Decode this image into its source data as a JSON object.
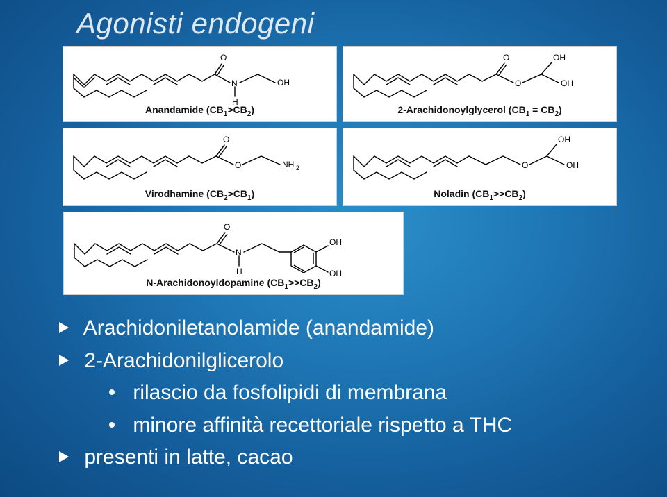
{
  "title": "Agonisti endogeni",
  "molecules": {
    "anandamide": {
      "name": "Anandamide",
      "affinity_html": "(CB<span class='sub'>1</span>>CB<span class='sub'>2</span>)"
    },
    "ag2": {
      "name": "2-Arachidonoylglycerol",
      "affinity_html": "(CB<span class='sub'>1</span> = CB<span class='sub'>2</span>)"
    },
    "virodhamine": {
      "name": "Virodhamine",
      "affinity_html": "(CB<span class='sub'>2</span>>CB<span class='sub'>1</span>)"
    },
    "noladin": {
      "name": "Noladin",
      "affinity_html": "(CB<span class='sub'>1</span>>>CB<span class='sub'>2</span>)"
    },
    "nada": {
      "name": "N-Arachidonoyldopamine",
      "affinity_html": "(CB<span class='sub'>1</span>>>CB<span class='sub'>2</span>)"
    }
  },
  "bullets": {
    "b1": "Arachidoniletanolamide (anandamide)",
    "b2": "2-Arachidonilglicerolo",
    "b2a": "rilascio da fosfolipidi di membrana",
    "b2b": "minore affinità recettoriale rispetto a THC",
    "b3": "presenti in latte, cacao"
  }
}
